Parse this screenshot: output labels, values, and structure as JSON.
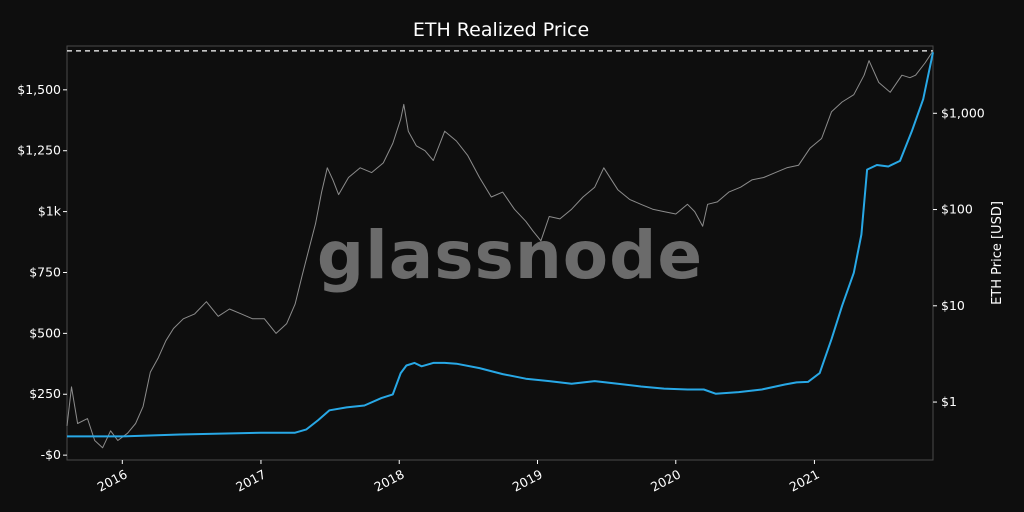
{
  "chart_data": {
    "type": "line",
    "title": "ETH Realized Price",
    "watermark": "glassnode",
    "xlabel": "",
    "x_tick_labels": [
      "2016",
      "2017",
      "2018",
      "2019",
      "2020",
      "2021"
    ],
    "x_ticks": [
      "2016-01-01",
      "2017-01-01",
      "2018-01-01",
      "2019-01-01",
      "2020-01-01",
      "2021-01-01"
    ],
    "xlim": [
      "2015-08-08",
      "2021-11-10"
    ],
    "y_left": {
      "label": "",
      "scale": "linear",
      "ylim": [
        -20,
        1680
      ],
      "tick_values": [
        0,
        250,
        500,
        750,
        1000,
        1250,
        1500
      ],
      "tick_labels": [
        "-$0",
        "$250",
        "$500",
        "$750",
        "$1k",
        "$1,250",
        "$1,500"
      ],
      "reference_line": 1660
    },
    "y_right": {
      "label": "ETH Price [USD]",
      "scale": "log",
      "ylim": [
        0.25,
        5000
      ],
      "tick_values": [
        1,
        10,
        100,
        1000
      ],
      "tick_labels": [
        "$1",
        "$10",
        "$100",
        "$1,000"
      ]
    },
    "series": [
      {
        "name": "",
        "axis": "left",
        "color": "#8c8c8c",
        "x": [
          "2015-08-08",
          "2015-08-20",
          "2015-09-05",
          "2015-10-01",
          "2015-10-20",
          "2015-11-10",
          "2015-12-01",
          "2015-12-20",
          "2016-01-15",
          "2016-02-05",
          "2016-02-25",
          "2016-03-15",
          "2016-04-05",
          "2016-04-25",
          "2016-05-15",
          "2016-06-10",
          "2016-07-10",
          "2016-08-10",
          "2016-09-10",
          "2016-10-10",
          "2016-11-10",
          "2016-12-10",
          "2017-01-10",
          "2017-02-10",
          "2017-03-10",
          "2017-04-01",
          "2017-04-20",
          "2017-05-10",
          "2017-05-25",
          "2017-06-10",
          "2017-06-25",
          "2017-07-10",
          "2017-07-25",
          "2017-08-20",
          "2017-09-20",
          "2017-10-20",
          "2017-11-20",
          "2017-12-15",
          "2018-01-05",
          "2018-01-13",
          "2018-01-25",
          "2018-02-15",
          "2018-03-10",
          "2018-04-01",
          "2018-05-01",
          "2018-06-01",
          "2018-07-01",
          "2018-08-01",
          "2018-09-01",
          "2018-10-01",
          "2018-11-01",
          "2018-12-01",
          "2018-12-20",
          "2019-01-10",
          "2019-02-01",
          "2019-03-01",
          "2019-04-01",
          "2019-05-01",
          "2019-06-01",
          "2019-06-25",
          "2019-08-01",
          "2019-09-01",
          "2019-10-01",
          "2019-11-01",
          "2019-12-01",
          "2020-01-01",
          "2020-02-01",
          "2020-02-20",
          "2020-03-12",
          "2020-03-25",
          "2020-04-20",
          "2020-05-20",
          "2020-06-20",
          "2020-07-20",
          "2020-08-20",
          "2020-09-20",
          "2020-10-20",
          "2020-11-20",
          "2020-12-20",
          "2021-01-20",
          "2021-02-15",
          "2021-03-15",
          "2021-04-15",
          "2021-05-12",
          "2021-05-25",
          "2021-06-20",
          "2021-07-20",
          "2021-08-20",
          "2021-09-10",
          "2021-09-25",
          "2021-10-20",
          "2021-11-10"
        ],
        "values": [
          120,
          280,
          130,
          150,
          60,
          30,
          100,
          60,
          90,
          130,
          200,
          340,
          400,
          470,
          520,
          560,
          580,
          630,
          570,
          600,
          580,
          560,
          560,
          500,
          540,
          620,
          740,
          860,
          950,
          1080,
          1180,
          1130,
          1070,
          1140,
          1180,
          1160,
          1200,
          1280,
          1380,
          1440,
          1330,
          1270,
          1250,
          1210,
          1330,
          1290,
          1230,
          1140,
          1060,
          1080,
          1010,
          960,
          920,
          880,
          980,
          970,
          1010,
          1060,
          1100,
          1180,
          1090,
          1050,
          1030,
          1010,
          1000,
          990,
          1030,
          1000,
          940,
          1030,
          1040,
          1080,
          1100,
          1130,
          1140,
          1160,
          1180,
          1190,
          1260,
          1300,
          1410,
          1450,
          1480,
          1560,
          1620,
          1530,
          1490,
          1560,
          1550,
          1560,
          1610,
          1660
        ]
      },
      {
        "name": "",
        "axis": "right",
        "color": "#28a8e6",
        "x": [
          "2015-08-08",
          "2016-01-01",
          "2016-06-01",
          "2017-01-01",
          "2017-04-01",
          "2017-05-01",
          "2017-06-01",
          "2017-07-01",
          "2017-08-15",
          "2017-10-01",
          "2017-11-15",
          "2017-12-15",
          "2018-01-05",
          "2018-01-20",
          "2018-02-10",
          "2018-03-01",
          "2018-04-01",
          "2018-05-01",
          "2018-06-01",
          "2018-08-01",
          "2018-10-01",
          "2018-12-01",
          "2019-02-01",
          "2019-04-01",
          "2019-06-01",
          "2019-08-01",
          "2019-10-01",
          "2019-12-01",
          "2020-02-01",
          "2020-03-15",
          "2020-04-15",
          "2020-06-15",
          "2020-08-15",
          "2020-10-15",
          "2020-11-15",
          "2020-12-15",
          "2021-01-15",
          "2021-02-15",
          "2021-03-15",
          "2021-04-15",
          "2021-05-05",
          "2021-05-20",
          "2021-06-15",
          "2021-07-15",
          "2021-08-15",
          "2021-09-15",
          "2021-10-15",
          "2021-11-10"
        ],
        "values": [
          0.44,
          0.44,
          0.46,
          0.48,
          0.48,
          0.52,
          0.65,
          0.82,
          0.88,
          0.92,
          1.1,
          1.2,
          2.0,
          2.4,
          2.55,
          2.35,
          2.55,
          2.55,
          2.5,
          2.25,
          1.95,
          1.75,
          1.65,
          1.55,
          1.65,
          1.55,
          1.45,
          1.38,
          1.35,
          1.35,
          1.22,
          1.27,
          1.35,
          1.52,
          1.6,
          1.62,
          2.0,
          4.5,
          10,
          22,
          55,
          260,
          290,
          280,
          320,
          650,
          1400,
          4300
        ]
      }
    ]
  }
}
